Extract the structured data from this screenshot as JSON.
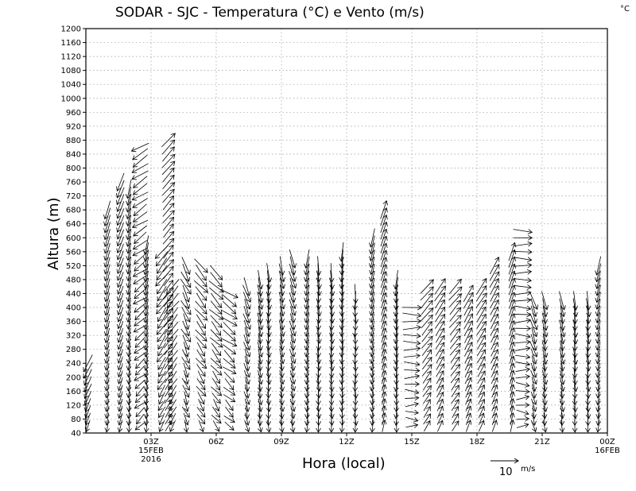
{
  "chart_data": {
    "type": "wind-vector",
    "title": "SODAR - SJC - Temperatura (°C) e Vento (m/s)",
    "corner_unit": "°C",
    "xlabel": "Hora (local)",
    "ylabel": "Altura (m)",
    "ylim": [
      40,
      1200
    ],
    "y_ticks": [
      40,
      80,
      120,
      160,
      200,
      240,
      280,
      320,
      360,
      400,
      440,
      480,
      520,
      560,
      600,
      640,
      680,
      720,
      760,
      800,
      840,
      880,
      920,
      960,
      1000,
      1040,
      1080,
      1120,
      1160,
      1200
    ],
    "xlim_hours": [
      0,
      24
    ],
    "x_ticks": [
      {
        "hour": 3,
        "label": "03Z",
        "sub1": "15FEB",
        "sub2": "2016"
      },
      {
        "hour": 6,
        "label": "06Z",
        "sub1": "",
        "sub2": ""
      },
      {
        "hour": 9,
        "label": "09Z",
        "sub1": "",
        "sub2": ""
      },
      {
        "hour": 12,
        "label": "12Z",
        "sub1": "",
        "sub2": ""
      },
      {
        "hour": 15,
        "label": "15Z",
        "sub1": "",
        "sub2": ""
      },
      {
        "hour": 18,
        "label": "18Z",
        "sub1": "",
        "sub2": ""
      },
      {
        "hour": 21,
        "label": "21Z",
        "sub1": "",
        "sub2": ""
      },
      {
        "hour": 24,
        "label": "00Z",
        "sub1": "16FEB",
        "sub2": ""
      }
    ],
    "grid": true,
    "legend": {
      "value_label": "10",
      "unit": "m/s",
      "placement": "bottom-right"
    },
    "series": [
      {
        "time": 0.1,
        "top": 240,
        "u": -0.3,
        "v": -0.6
      },
      {
        "time": 1.0,
        "top": 680,
        "u": -0.3,
        "v": -1.0
      },
      {
        "time": 1.6,
        "top": 760,
        "u": -0.4,
        "v": -1.0
      },
      {
        "time": 2.0,
        "top": 740,
        "u": -0.2,
        "v": -1.0
      },
      {
        "time": 2.5,
        "top": 870,
        "u": -0.6,
        "v": -0.4
      },
      {
        "time": 3.8,
        "top": 880,
        "u": 0.9,
        "v": 1.0
      },
      {
        "time": 2.8,
        "top": 580,
        "u": -0.2,
        "v": -1.0
      },
      {
        "time": 3.5,
        "top": 570,
        "u": -0.3,
        "v": -0.4
      },
      {
        "time": 4.0,
        "top": 460,
        "u": -0.4,
        "v": -0.5
      },
      {
        "time": 4.6,
        "top": 520,
        "u": 0.3,
        "v": -0.6
      },
      {
        "time": 5.3,
        "top": 520,
        "u": 0.6,
        "v": -0.7
      },
      {
        "time": 6.0,
        "top": 500,
        "u": 0.6,
        "v": -0.6
      },
      {
        "time": 6.6,
        "top": 440,
        "u": 0.7,
        "v": -0.5
      },
      {
        "time": 7.4,
        "top": 460,
        "u": 0.3,
        "v": -0.9
      },
      {
        "time": 8.0,
        "top": 480,
        "u": 0.2,
        "v": -1.0
      },
      {
        "time": 8.4,
        "top": 500,
        "u": 0.1,
        "v": -1.0
      },
      {
        "time": 9.0,
        "top": 520,
        "u": 0.2,
        "v": -1.0
      },
      {
        "time": 9.5,
        "top": 540,
        "u": 0.3,
        "v": -1.0
      },
      {
        "time": 10.2,
        "top": 550,
        "u": -0.2,
        "v": -1.0
      },
      {
        "time": 10.7,
        "top": 520,
        "u": 0.1,
        "v": -1.0
      },
      {
        "time": 11.3,
        "top": 500,
        "u": 0.1,
        "v": -1.0
      },
      {
        "time": 11.8,
        "top": 560,
        "u": -0.1,
        "v": -1.0
      },
      {
        "time": 12.4,
        "top": 440,
        "u": 0.0,
        "v": -0.6
      },
      {
        "time": 13.2,
        "top": 600,
        "u": -0.2,
        "v": -0.9
      },
      {
        "time": 13.7,
        "top": 680,
        "u": 0.3,
        "v": 0.9
      },
      {
        "time": 14.3,
        "top": 480,
        "u": -0.1,
        "v": -0.8
      },
      {
        "time": 15.0,
        "top": 400,
        "u": 1.0,
        "v": 0.0
      },
      {
        "time": 15.7,
        "top": 460,
        "u": 0.7,
        "v": 0.8
      },
      {
        "time": 16.3,
        "top": 460,
        "u": 0.6,
        "v": 0.9
      },
      {
        "time": 17.0,
        "top": 460,
        "u": 0.7,
        "v": 0.8
      },
      {
        "time": 17.6,
        "top": 440,
        "u": 0.5,
        "v": 0.9
      },
      {
        "time": 18.2,
        "top": 470,
        "u": 0.6,
        "v": 0.9
      },
      {
        "time": 18.8,
        "top": 520,
        "u": 0.5,
        "v": 0.9
      },
      {
        "time": 19.6,
        "top": 560,
        "u": 0.3,
        "v": 0.9
      },
      {
        "time": 20.1,
        "top": 620,
        "u": 1.0,
        "v": 0.0
      },
      {
        "time": 20.6,
        "top": 420,
        "u": 0.3,
        "v": -0.9
      },
      {
        "time": 21.1,
        "top": 420,
        "u": 0.2,
        "v": -1.0
      },
      {
        "time": 21.9,
        "top": 420,
        "u": 0.2,
        "v": -1.0
      },
      {
        "time": 22.5,
        "top": 420,
        "u": 0.1,
        "v": -1.0
      },
      {
        "time": 23.1,
        "top": 420,
        "u": 0.1,
        "v": -1.0
      },
      {
        "time": 23.6,
        "top": 520,
        "u": -0.2,
        "v": -0.9
      }
    ]
  }
}
